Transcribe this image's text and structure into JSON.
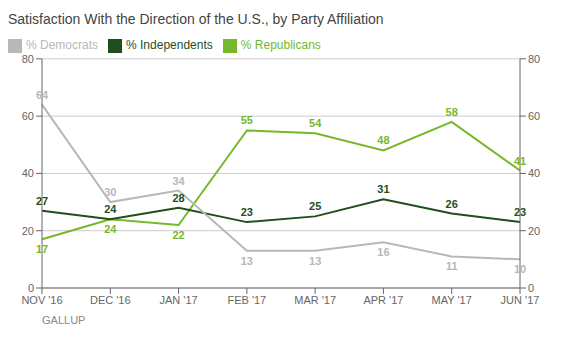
{
  "chart_data": {
    "type": "line",
    "title": "Satisfaction With the Direction of the U.S., by Party Affiliation",
    "categories": [
      "NOV '16",
      "DEC '16",
      "JAN '17",
      "FEB '17",
      "MAR '17",
      "APR '17",
      "MAY '17",
      "JUN '17"
    ],
    "series": [
      {
        "name": "% Republicans",
        "color": "#76b82a",
        "values": [
          17,
          24,
          22,
          55,
          54,
          48,
          58,
          41
        ]
      },
      {
        "name": "% Independents",
        "color": "#1f4e1f",
        "values": [
          27,
          24,
          28,
          23,
          25,
          31,
          26,
          23
        ]
      },
      {
        "name": "% Democrats",
        "color": "#b8b8b8",
        "values": [
          64,
          30,
          34,
          13,
          13,
          16,
          11,
          10
        ]
      }
    ],
    "ylim": [
      0,
      80
    ],
    "yticks": [
      0,
      20,
      40,
      60,
      80
    ],
    "y2lim": [
      0,
      80
    ],
    "y2ticks": [
      0,
      20,
      40,
      60,
      80
    ],
    "grid": true,
    "legend": "top",
    "data_labels": true,
    "annotations": [
      "GALLUP"
    ]
  }
}
